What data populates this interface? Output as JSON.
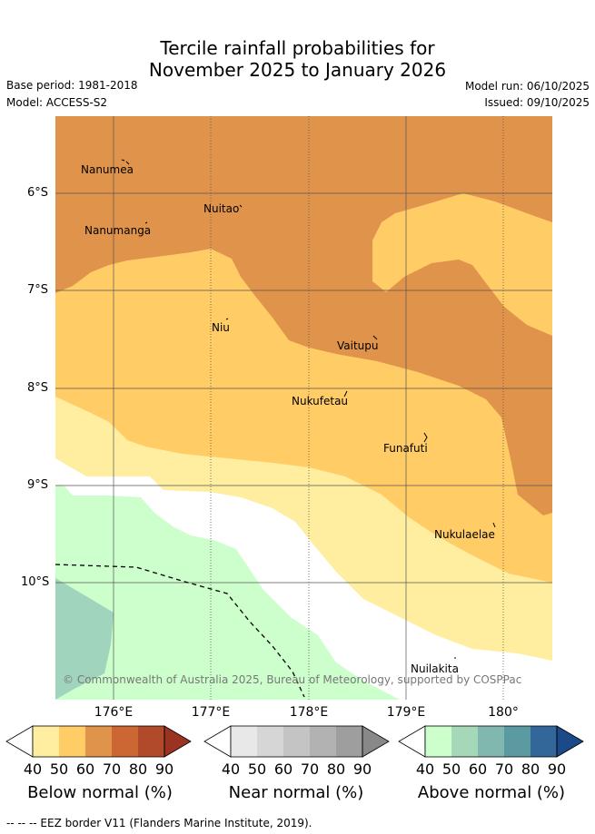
{
  "title_line1": "Tercile rainfall probabilities for",
  "title_line2": "November 2025 to January 2026",
  "base_period": "Base period: 1981-2018",
  "model": "Model: ACCESS-S2",
  "model_run": "Model run: 06/10/2025",
  "issued": "Issued: 09/10/2025",
  "lat_labels": [
    "6°S",
    "7°S",
    "8°S",
    "9°S",
    "10°S"
  ],
  "lon_labels": [
    "176°E",
    "177°E",
    "178°E",
    "179°E",
    "180°"
  ],
  "places": [
    "Nanumea",
    "Nuitao",
    "Nanumanga",
    "Niu",
    "Vaitupu",
    "Nukufetau",
    "Funafuti",
    "Nukulaelae",
    "Nuilakita"
  ],
  "copyright": "© Commonwealth of Australia 2025, Bureau of Meteorology, supported by COSPPac",
  "colorbars": [
    {
      "label": "Below normal (%)",
      "ticks": [
        "40",
        "50",
        "60",
        "70",
        "80",
        "90"
      ],
      "colors": [
        "#ffeea0",
        "#ffcc66",
        "#e0934a",
        "#cc6633",
        "#b04a2a",
        "#9a3322"
      ]
    },
    {
      "label": "Near normal (%)",
      "ticks": [
        "40",
        "50",
        "60",
        "70",
        "80",
        "90"
      ],
      "colors": [
        "#e8e8e8",
        "#d6d6d6",
        "#c4c4c4",
        "#b2b2b2",
        "#9e9e9e",
        "#888888"
      ]
    },
    {
      "label": "Above normal (%)",
      "ticks": [
        "40",
        "50",
        "60",
        "70",
        "80",
        "90"
      ],
      "colors": [
        "#ccffcc",
        "#a4d8b8",
        "#80b8b0",
        "#5a9aa0",
        "#336699",
        "#1a4a88"
      ]
    }
  ],
  "eez_legend": "--  --  -- EEZ border V11 (Flanders Marine Institute, 2019).",
  "colors": {
    "below_40": "#ffeea0",
    "below_50": "#ffcc66",
    "below_60": "#e0934a",
    "above_40": "#ccffcc",
    "above_50": "#a0d4bc"
  }
}
